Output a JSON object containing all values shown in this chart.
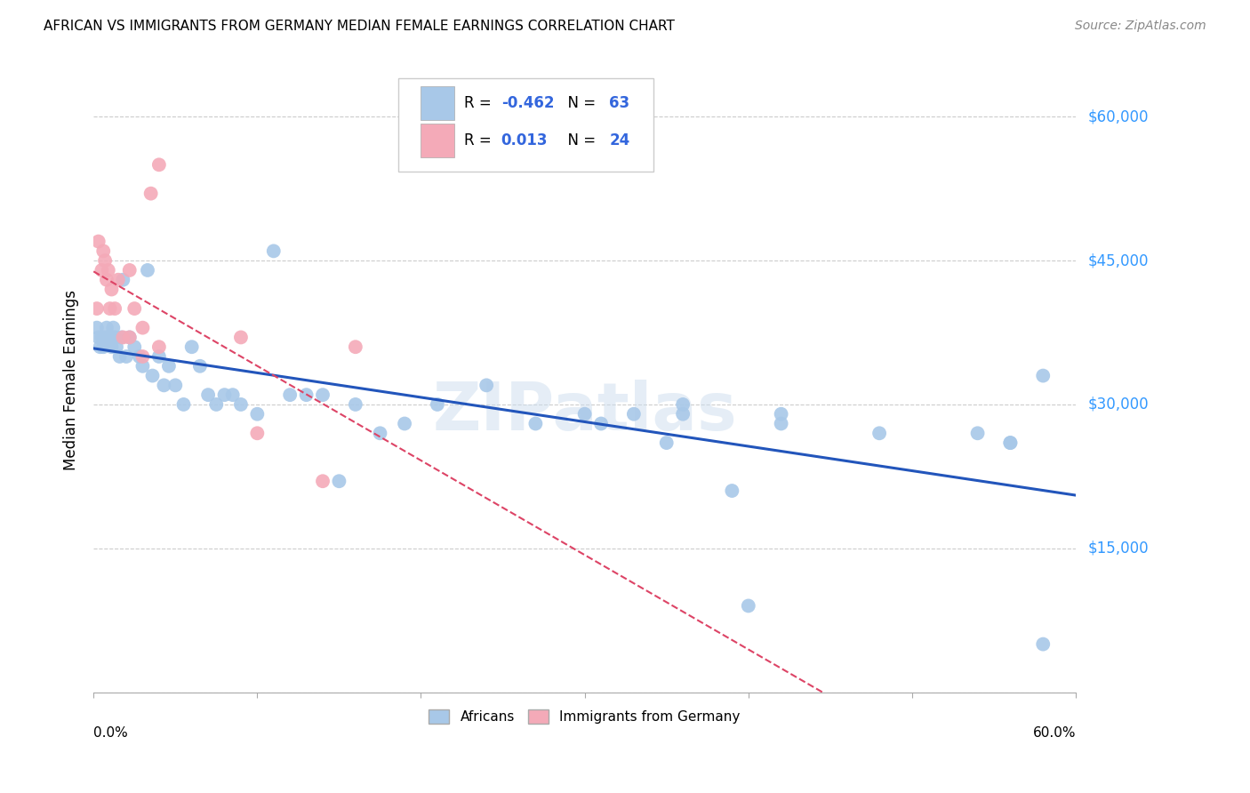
{
  "title": "AFRICAN VS IMMIGRANTS FROM GERMANY MEDIAN FEMALE EARNINGS CORRELATION CHART",
  "source": "Source: ZipAtlas.com",
  "ylabel": "Median Female Earnings",
  "yticks": [
    0,
    15000,
    30000,
    45000,
    60000
  ],
  "ytick_labels": [
    "",
    "$15,000",
    "$30,000",
    "$45,000",
    "$60,000"
  ],
  "ylim": [
    0,
    65000
  ],
  "xlim": [
    0.0,
    0.6
  ],
  "watermark": "ZIPatlas",
  "blue_color": "#a8c8e8",
  "pink_color": "#f4aab8",
  "line_blue": "#2255bb",
  "line_pink": "#dd4466",
  "legend_text_color": "#3366dd",
  "africans_x": [
    0.002,
    0.003,
    0.004,
    0.005,
    0.006,
    0.007,
    0.008,
    0.009,
    0.01,
    0.011,
    0.012,
    0.013,
    0.014,
    0.016,
    0.017,
    0.018,
    0.02,
    0.022,
    0.025,
    0.028,
    0.03,
    0.033,
    0.036,
    0.04,
    0.043,
    0.046,
    0.05,
    0.055,
    0.06,
    0.065,
    0.07,
    0.075,
    0.08,
    0.085,
    0.09,
    0.1,
    0.11,
    0.12,
    0.13,
    0.14,
    0.15,
    0.16,
    0.175,
    0.19,
    0.21,
    0.24,
    0.27,
    0.3,
    0.33,
    0.36,
    0.39,
    0.42,
    0.36,
    0.42,
    0.48,
    0.54,
    0.56,
    0.58,
    0.31,
    0.35,
    0.4,
    0.56,
    0.58
  ],
  "africans_y": [
    38000,
    37000,
    36000,
    37000,
    36000,
    37000,
    38000,
    37000,
    37000,
    36000,
    38000,
    37000,
    36000,
    35000,
    37000,
    43000,
    35000,
    37000,
    36000,
    35000,
    34000,
    44000,
    33000,
    35000,
    32000,
    34000,
    32000,
    30000,
    36000,
    34000,
    31000,
    30000,
    31000,
    31000,
    30000,
    29000,
    46000,
    31000,
    31000,
    31000,
    22000,
    30000,
    27000,
    28000,
    30000,
    32000,
    28000,
    29000,
    29000,
    29000,
    21000,
    29000,
    30000,
    28000,
    27000,
    27000,
    26000,
    33000,
    28000,
    26000,
    9000,
    26000,
    5000
  ],
  "germany_x": [
    0.002,
    0.003,
    0.005,
    0.006,
    0.007,
    0.008,
    0.009,
    0.01,
    0.011,
    0.013,
    0.015,
    0.018,
    0.022,
    0.025,
    0.03,
    0.035,
    0.04,
    0.022,
    0.03,
    0.04,
    0.09,
    0.1,
    0.14,
    0.16
  ],
  "germany_y": [
    40000,
    47000,
    44000,
    46000,
    45000,
    43000,
    44000,
    40000,
    42000,
    40000,
    43000,
    37000,
    44000,
    40000,
    38000,
    52000,
    55000,
    37000,
    35000,
    36000,
    37000,
    27000,
    22000,
    36000
  ]
}
